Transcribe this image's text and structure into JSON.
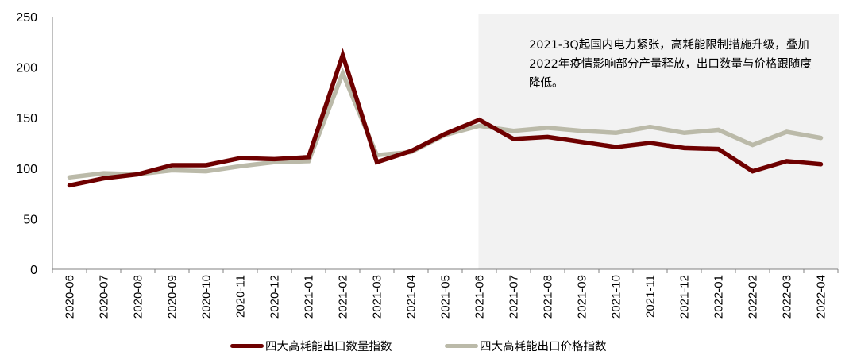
{
  "chart_data": {
    "type": "line",
    "title": "",
    "xlabel": "",
    "ylabel": "",
    "ylim": [
      0,
      250
    ],
    "yticks": [
      0,
      50,
      100,
      150,
      200,
      250
    ],
    "grid": false,
    "legend_position": "bottom",
    "categories": [
      "2020-06",
      "2020-07",
      "2020-08",
      "2020-09",
      "2020-10",
      "2020-11",
      "2020-12",
      "2021-01",
      "2021-02",
      "2021-03",
      "2021-04",
      "2021-05",
      "2021-06",
      "2021-07",
      "2021-08",
      "2021-09",
      "2021-10",
      "2021-11",
      "2021-12",
      "2022-01",
      "2022-02",
      "2022-03",
      "2022-04"
    ],
    "series": [
      {
        "name": "四大高耗能出口数量指数",
        "color": "#6e0000",
        "values": [
          83,
          90,
          94,
          103,
          103,
          110,
          109,
          111,
          212,
          106,
          117,
          134,
          148,
          129,
          131,
          126,
          121,
          125,
          120,
          119,
          97,
          107,
          104
        ]
      },
      {
        "name": "四大高耗能出口价格指数",
        "color": "#bbbaa9",
        "values": [
          91,
          95,
          94,
          98,
          97,
          102,
          106,
          107,
          194,
          113,
          116,
          133,
          142,
          137,
          140,
          137,
          135,
          141,
          135,
          138,
          123,
          136,
          130
        ]
      }
    ],
    "shaded_region": {
      "from": "2021-06",
      "to": "2022-04",
      "color": "#f2f2f2"
    },
    "annotation": "2021-3Q起国内电力紧张，高耗能限制措施升级，叠加2022年疫情影响部分产量释放，出口数量与价格跟随度降低。"
  }
}
